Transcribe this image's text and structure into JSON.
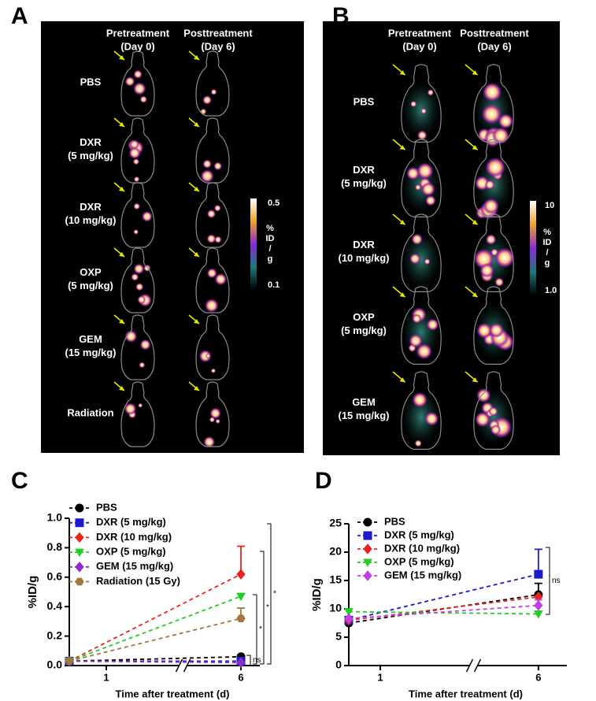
{
  "panels": [
    {
      "letter": "A",
      "headers": [
        [
          "Pretreatment",
          "(Day 0)"
        ],
        [
          "Posttreatment",
          "(Day 6)"
        ]
      ],
      "rows": [
        [
          "PBS"
        ],
        [
          "DXR",
          "(5 mg/kg)"
        ],
        [
          "DXR",
          "(10 mg/kg)"
        ],
        [
          "OXP",
          "(5 mg/kg)"
        ],
        [
          "GEM",
          "(15 mg/kg)"
        ],
        [
          "Radiation"
        ]
      ],
      "colorbar": {
        "max": "0.5",
        "unit": [
          "%",
          "ID",
          "/",
          "g"
        ],
        "min": "0.1"
      }
    },
    {
      "letter": "B",
      "headers": [
        [
          "Pretreatment",
          "(Day 0)"
        ],
        [
          "Posttreatment",
          "(Day 6)"
        ]
      ],
      "rows": [
        [
          "PBS"
        ],
        [
          "DXR",
          "(5 mg/kg)"
        ],
        [
          "DXR",
          "(10 mg/kg)"
        ],
        [
          "OXP",
          "(5 mg/kg)"
        ],
        [
          "GEM",
          "(15 mg/kg)"
        ]
      ],
      "colorbar": {
        "max": "10",
        "unit": [
          "%",
          "ID",
          "/",
          "g"
        ],
        "min": "1.0"
      }
    }
  ],
  "chart_data": [
    {
      "type": "line",
      "letter": "C",
      "ylabel": "%ID/g",
      "xlabel": "Time after treatment (d)",
      "axis_break": true,
      "x": [
        0,
        6
      ],
      "xlim": [
        0,
        6.7
      ],
      "xticks": [
        1,
        6
      ],
      "ylim": [
        0,
        1
      ],
      "yticks": [
        {
          "value": 0,
          "label": "0.0"
        },
        0.2,
        0.4,
        0.6,
        0.8,
        {
          "value": 1,
          "label": "1.0"
        }
      ],
      "series": [
        {
          "name": "PBS",
          "color": "#000000",
          "marker": "circle",
          "values": [
            0.03,
            0.06
          ],
          "errors": [
            null,
            0.01
          ]
        },
        {
          "name": "DXR (5 mg/kg)",
          "color": "#1a1acc",
          "marker": "square",
          "values": [
            0.03,
            0.03
          ],
          "errors": [
            null,
            null
          ]
        },
        {
          "name": "DXR (10 mg/kg)",
          "color": "#e8241e",
          "marker": "diamond",
          "values": [
            0.03,
            0.62
          ],
          "errors": [
            null,
            0.19
          ]
        },
        {
          "name": "OXP (5 mg/kg)",
          "color": "#22cc22",
          "marker": "triangle-down",
          "values": [
            0.03,
            0.47
          ],
          "errors": [
            null,
            null
          ]
        },
        {
          "name": "GEM (15 mg/kg)",
          "color": "#8a2fc4",
          "marker": "diamond",
          "values": [
            0.03,
            0.02
          ],
          "errors": [
            null,
            null
          ]
        },
        {
          "name": "Radiation (15 Gy)",
          "color": "#a0783c",
          "marker": "hexagon",
          "values": [
            0.03,
            0.32
          ],
          "errors": [
            null,
            0.07
          ]
        }
      ],
      "annotations": [
        "ns",
        "*",
        "*",
        "*"
      ]
    },
    {
      "type": "line",
      "letter": "D",
      "ylabel": "%ID/g",
      "xlabel": "Time after treatment (d)",
      "axis_break": true,
      "x": [
        0,
        6
      ],
      "xlim": [
        0,
        6.9
      ],
      "xticks": [
        1,
        6
      ],
      "ylim": [
        0,
        25
      ],
      "yticks": [
        0,
        5,
        10,
        15,
        20,
        25
      ],
      "series": [
        {
          "name": "PBS",
          "color": "#000000",
          "marker": "circle",
          "values": [
            7.5,
            12.5
          ],
          "errors": [
            null,
            2
          ]
        },
        {
          "name": "DXR (5 mg/kg)",
          "color": "#1a1acc",
          "marker": "square",
          "values": [
            8,
            16.1
          ],
          "errors": [
            null,
            4.4
          ]
        },
        {
          "name": "DXR (10 mg/kg)",
          "color": "#e8241e",
          "marker": "diamond",
          "values": [
            8,
            12.1
          ],
          "errors": [
            null,
            null
          ]
        },
        {
          "name": "OXP (5 mg/kg)",
          "color": "#22cc22",
          "marker": "triangle-down",
          "values": [
            9.5,
            9.1
          ],
          "errors": [
            null,
            null
          ]
        },
        {
          "name": "GEM (15 mg/kg)",
          "color": "#c23fe6",
          "marker": "diamond",
          "values": [
            8.3,
            10.6
          ],
          "errors": [
            null,
            1
          ]
        }
      ],
      "annotations": [
        "ns"
      ]
    }
  ]
}
